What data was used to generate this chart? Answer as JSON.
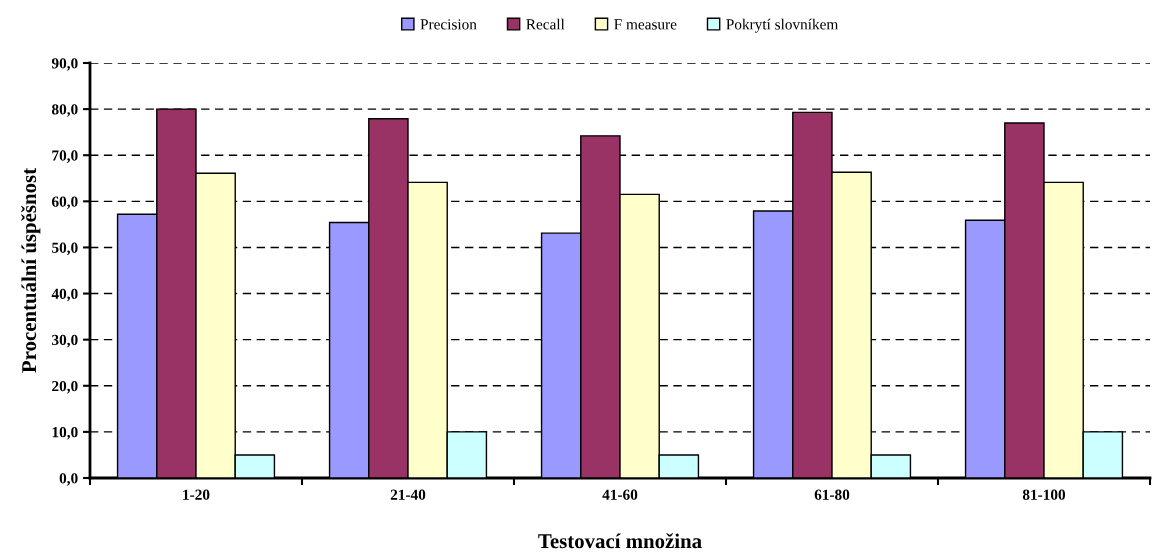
{
  "chart_data": {
    "type": "bar",
    "xlabel": "Testovací množina",
    "ylabel": "Procentuální úspěšnost",
    "categories": [
      "1-20",
      "21-40",
      "41-60",
      "61-80",
      "81-100"
    ],
    "series": [
      {
        "name": "Precision",
        "color": "#9999ff",
        "values": [
          57.2,
          55.4,
          53.1,
          57.9,
          55.9
        ]
      },
      {
        "name": "Recall",
        "color": "#993366",
        "values": [
          80.0,
          77.9,
          74.2,
          79.3,
          77.0
        ]
      },
      {
        "name": "F measure",
        "color": "#ffffcc",
        "values": [
          66.1,
          64.1,
          61.5,
          66.3,
          64.1
        ]
      },
      {
        "name": "Pokrytí slovníkem",
        "color": "#ccffff",
        "values": [
          5.0,
          10.0,
          5.0,
          5.0,
          10.0
        ]
      }
    ],
    "ylim": [
      0,
      90
    ],
    "yticks": [
      {
        "value": 0,
        "label": "0,0"
      },
      {
        "value": 10,
        "label": "10,0"
      },
      {
        "value": 20,
        "label": "20,0"
      },
      {
        "value": 30,
        "label": "30,0"
      },
      {
        "value": 40,
        "label": "40,0"
      },
      {
        "value": 50,
        "label": "50,0"
      },
      {
        "value": 60,
        "label": "60,0"
      },
      {
        "value": 70,
        "label": "70,0"
      },
      {
        "value": 80,
        "label": "80,0"
      },
      {
        "value": 90,
        "label": "90,0"
      }
    ],
    "grid": "y",
    "legend": "top"
  }
}
